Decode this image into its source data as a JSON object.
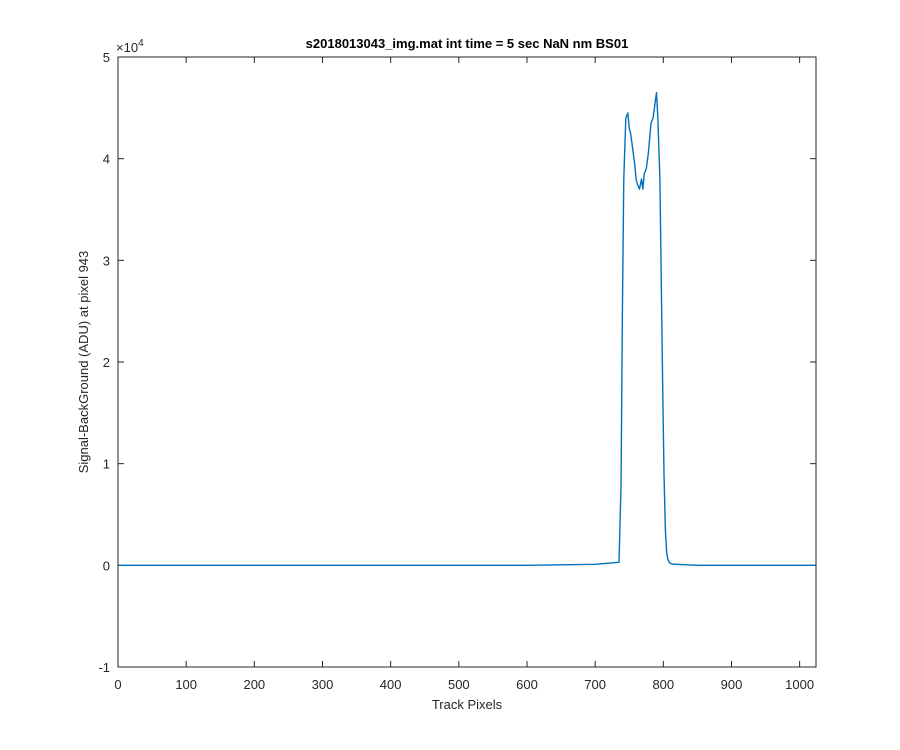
{
  "chart_data": {
    "type": "line",
    "title": "s2018013043_img.mat int time = 5 sec  NaN nm BS01",
    "xlabel": "Track Pixels",
    "ylabel": "Signal-BackGround (ADU) at pixel 943",
    "exponent_base": "×10",
    "exponent_power": "4",
    "xlim": [
      0,
      1024
    ],
    "ylim": [
      -10000,
      50000
    ],
    "xticks": [
      0,
      100,
      200,
      300,
      400,
      500,
      600,
      700,
      800,
      900,
      1000
    ],
    "xtick_labels": [
      "0",
      "100",
      "200",
      "300",
      "400",
      "500",
      "600",
      "700",
      "800",
      "900",
      "1000"
    ],
    "yticks": [
      -10000,
      0,
      10000,
      20000,
      30000,
      40000,
      50000
    ],
    "ytick_labels": [
      "-1",
      "0",
      "1",
      "2",
      "3",
      "4",
      "5"
    ],
    "line_color": "#0072BD",
    "grid": false,
    "series": [
      {
        "x": [
          0,
          100,
          200,
          300,
          400,
          500,
          600,
          700,
          735,
          738,
          740,
          742,
          745,
          748,
          750,
          752,
          755,
          758,
          760,
          762,
          765,
          768,
          770,
          772,
          775,
          778,
          780,
          782,
          785,
          788,
          790,
          792,
          795,
          797,
          799,
          801,
          803,
          805,
          807,
          810,
          815,
          820,
          850,
          900,
          950,
          1000,
          1024
        ],
        "y": [
          0,
          0,
          0,
          0,
          0,
          0,
          0,
          100,
          300,
          8000,
          25000,
          38000,
          44000,
          44500,
          43000,
          42500,
          41000,
          39500,
          38000,
          37500,
          37000,
          38000,
          37000,
          38500,
          39000,
          40500,
          42000,
          43500,
          44000,
          45500,
          46500,
          44000,
          38000,
          28000,
          18000,
          9000,
          3500,
          1200,
          500,
          200,
          100,
          100,
          0,
          0,
          0,
          0,
          0
        ]
      }
    ]
  }
}
